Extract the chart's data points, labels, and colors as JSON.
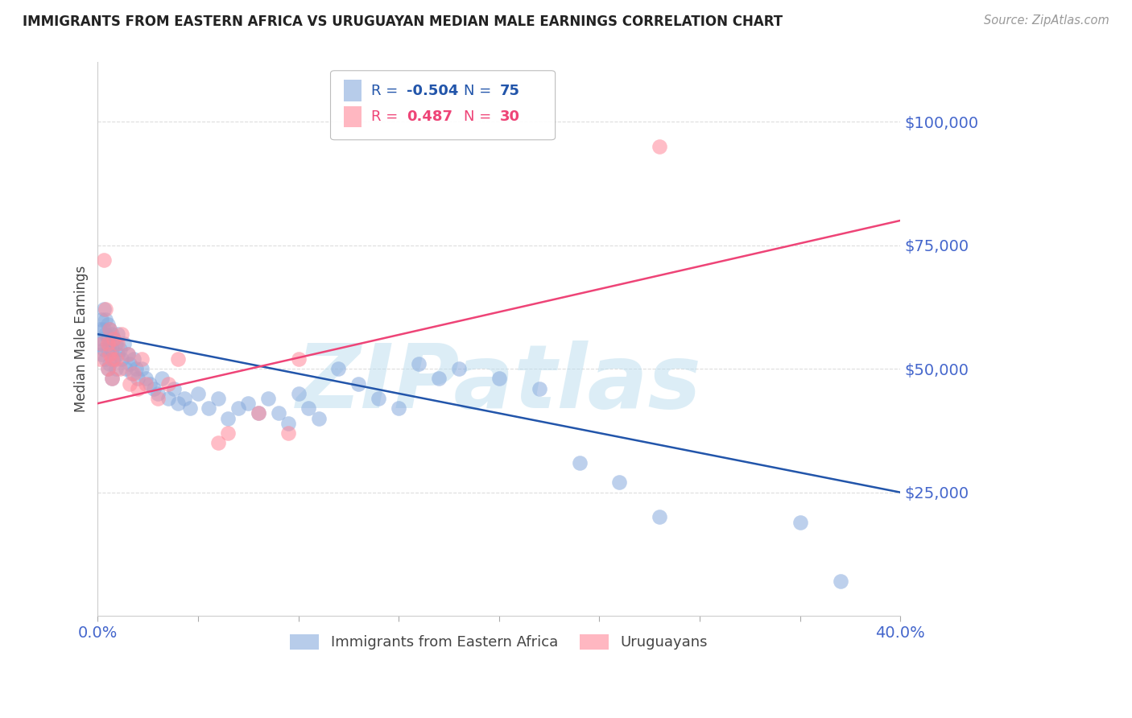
{
  "title": "IMMIGRANTS FROM EASTERN AFRICA VS URUGUAYAN MEDIAN MALE EARNINGS CORRELATION CHART",
  "source": "Source: ZipAtlas.com",
  "ylabel": "Median Male Earnings",
  "xlim": [
    0.0,
    0.4
  ],
  "ylim": [
    0,
    112000
  ],
  "yticks": [
    25000,
    50000,
    75000,
    100000
  ],
  "ytick_labels": [
    "$25,000",
    "$50,000",
    "$75,000",
    "$100,000"
  ],
  "xticks": [
    0.0,
    0.05,
    0.1,
    0.15,
    0.2,
    0.25,
    0.3,
    0.35,
    0.4
  ],
  "blue_color": "#88AADD",
  "pink_color": "#FF8899",
  "blue_line_color": "#2255AA",
  "pink_line_color": "#EE4477",
  "title_color": "#222222",
  "axis_label_color": "#444444",
  "tick_label_color": "#4466CC",
  "grid_color": "#DDDDDD",
  "watermark_text": "ZIPatlas",
  "watermark_color": "#BBDDEE",
  "blue_x": [
    0.001,
    0.001,
    0.002,
    0.002,
    0.002,
    0.003,
    0.003,
    0.003,
    0.004,
    0.004,
    0.004,
    0.005,
    0.005,
    0.005,
    0.005,
    0.006,
    0.006,
    0.006,
    0.007,
    0.007,
    0.007,
    0.008,
    0.008,
    0.009,
    0.009,
    0.01,
    0.01,
    0.011,
    0.012,
    0.013,
    0.014,
    0.015,
    0.016,
    0.017,
    0.018,
    0.019,
    0.02,
    0.022,
    0.024,
    0.026,
    0.028,
    0.03,
    0.032,
    0.035,
    0.038,
    0.04,
    0.043,
    0.046,
    0.05,
    0.055,
    0.06,
    0.065,
    0.07,
    0.075,
    0.08,
    0.085,
    0.09,
    0.095,
    0.1,
    0.105,
    0.11,
    0.12,
    0.13,
    0.14,
    0.15,
    0.16,
    0.17,
    0.18,
    0.2,
    0.22,
    0.24,
    0.26,
    0.28,
    0.35,
    0.37
  ],
  "blue_y": [
    58000,
    55000,
    60000,
    56000,
    53000,
    62000,
    58000,
    54000,
    60000,
    57000,
    52000,
    59000,
    56000,
    54000,
    50000,
    58000,
    55000,
    51000,
    57000,
    54000,
    48000,
    56000,
    52000,
    55000,
    50000,
    57000,
    53000,
    54000,
    52000,
    55000,
    50000,
    53000,
    51000,
    49000,
    52000,
    50000,
    48000,
    50000,
    48000,
    47000,
    46000,
    45000,
    48000,
    44000,
    46000,
    43000,
    44000,
    42000,
    45000,
    42000,
    44000,
    40000,
    42000,
    43000,
    41000,
    44000,
    41000,
    39000,
    45000,
    42000,
    40000,
    50000,
    47000,
    44000,
    42000,
    51000,
    48000,
    50000,
    48000,
    46000,
    31000,
    27000,
    20000,
    19000,
    7000
  ],
  "pink_x": [
    0.001,
    0.002,
    0.003,
    0.004,
    0.005,
    0.005,
    0.006,
    0.006,
    0.007,
    0.007,
    0.008,
    0.009,
    0.01,
    0.011,
    0.012,
    0.015,
    0.016,
    0.018,
    0.02,
    0.022,
    0.024,
    0.03,
    0.035,
    0.04,
    0.06,
    0.065,
    0.08,
    0.095,
    0.1,
    0.28
  ],
  "pink_y": [
    52000,
    55000,
    72000,
    62000,
    55000,
    50000,
    58000,
    53000,
    52000,
    48000,
    56000,
    52000,
    55000,
    50000,
    57000,
    53000,
    47000,
    49000,
    46000,
    52000,
    47000,
    44000,
    47000,
    52000,
    35000,
    37000,
    41000,
    37000,
    52000,
    95000
  ],
  "legend_blue_label": "Immigrants from Eastern Africa",
  "legend_pink_label": "Uruguayans",
  "background_color": "#FFFFFF"
}
